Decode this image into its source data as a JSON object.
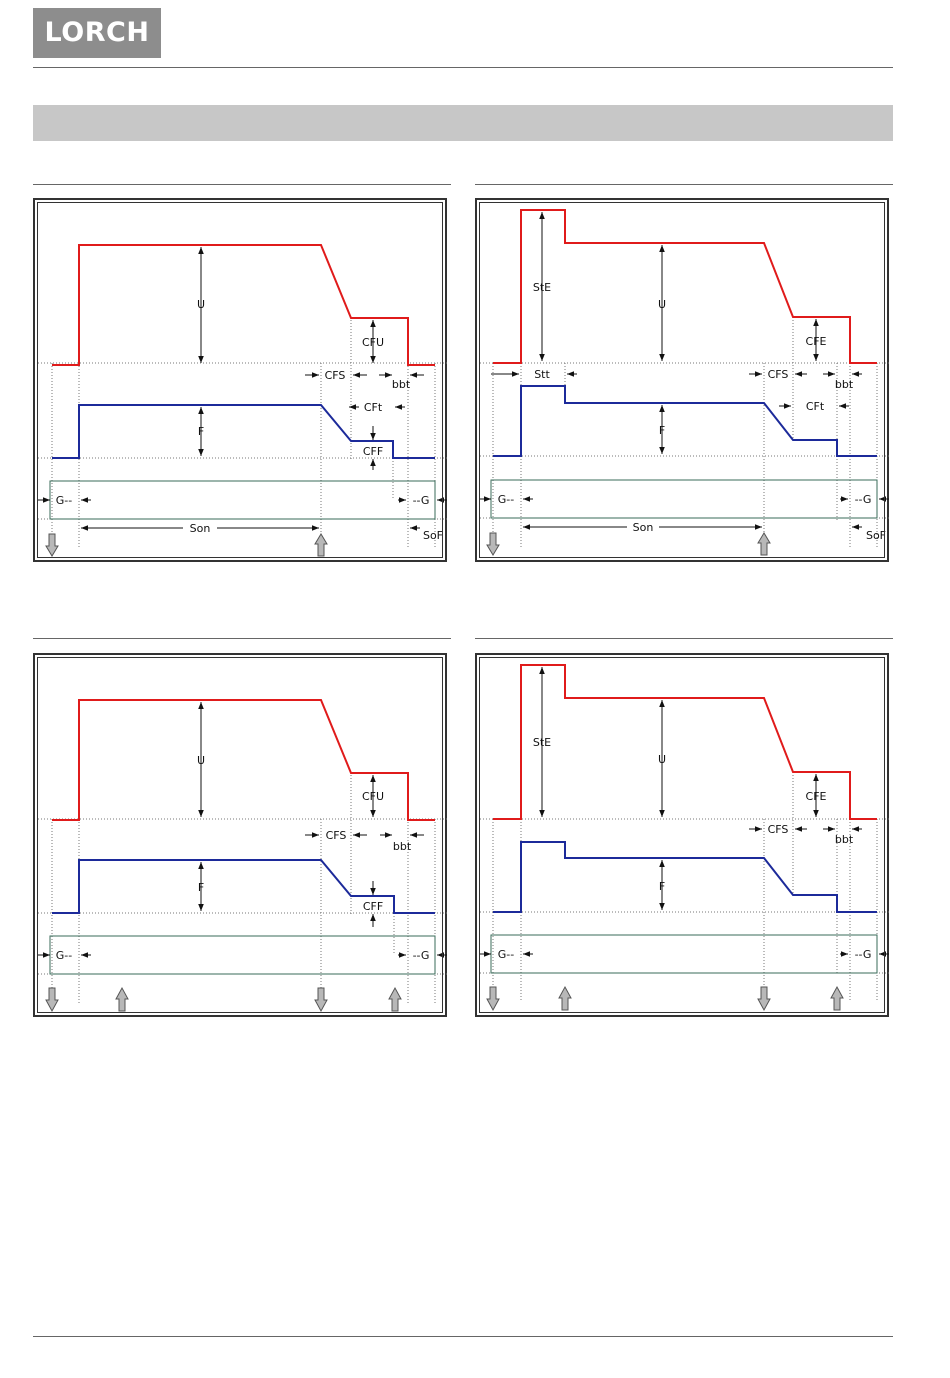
{
  "header": {
    "brand": "LORCH"
  },
  "diagrams": [
    {
      "id": "top-left",
      "labels": {
        "U": "U",
        "CFU": "CFU",
        "CFS": "CFS",
        "bbt": "bbt",
        "CFt": "CFt",
        "F": "F",
        "CFF": "CFF",
        "G_start": "G--",
        "G_end": "--G",
        "Son": "Son",
        "SoF": "SoF"
      }
    },
    {
      "id": "top-right",
      "labels": {
        "StE": "StE",
        "U": "U",
        "CFE": "CFE",
        "Stt": "Stt",
        "CFS": "CFS",
        "bbt": "bbt",
        "CFt": "CFt",
        "F": "F",
        "G_start": "G--",
        "G_end": "--G",
        "Son": "Son",
        "SoF": "SoF"
      }
    },
    {
      "id": "bottom-left",
      "labels": {
        "U": "U",
        "CFU": "CFU",
        "CFS": "CFS",
        "bbt": "bbt",
        "F": "F",
        "CFF": "CFF",
        "G_start": "G--",
        "G_end": "--G"
      }
    },
    {
      "id": "bottom-right",
      "labels": {
        "StE": "StE",
        "U": "U",
        "CFE": "CFE",
        "CFS": "CFS",
        "bbt": "bbt",
        "F": "F",
        "G_start": "G--",
        "G_end": "--G"
      }
    }
  ]
}
